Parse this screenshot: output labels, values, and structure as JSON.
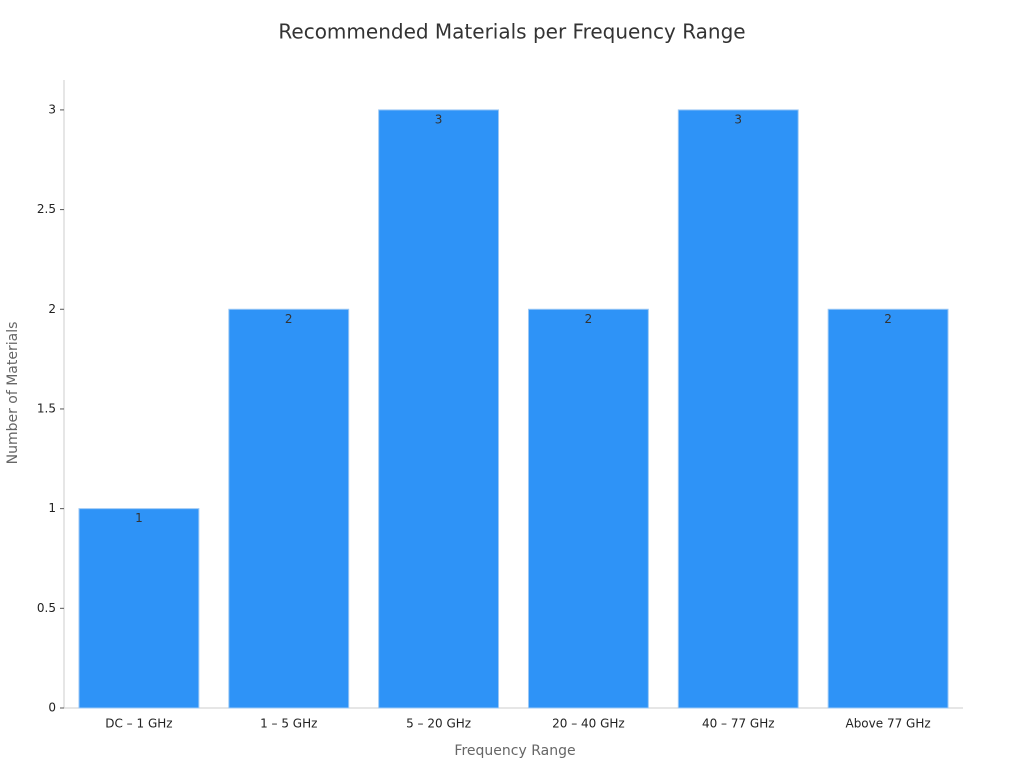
{
  "chart_data": {
    "type": "bar",
    "title": "Recommended Materials per Frequency Range",
    "x_label": "Frequency Range",
    "y_label": "Number of Materials",
    "categories": [
      "DC – 1 GHz",
      "1 – 5 GHz",
      "5 – 20 GHz",
      "20 – 40 GHz",
      "40 – 77 GHz",
      "Above 77 GHz"
    ],
    "values": [
      1,
      2,
      3,
      2,
      3,
      2
    ],
    "color": "#2e93f7",
    "ylim": [
      0,
      3.15
    ],
    "yticks": [
      0,
      0.5,
      1,
      1.5,
      2,
      2.5,
      3
    ],
    "grid": false
  }
}
